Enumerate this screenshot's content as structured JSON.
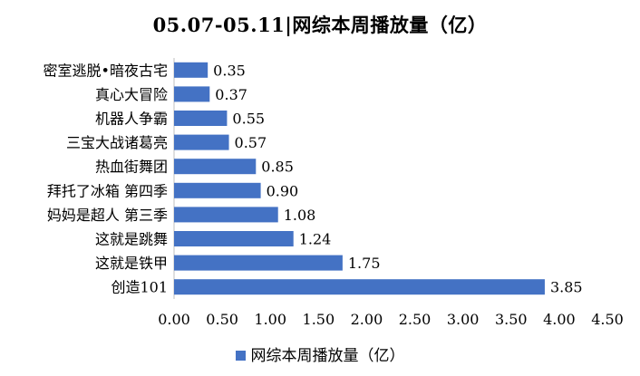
{
  "chart_data": {
    "type": "bar",
    "orientation": "horizontal",
    "title": "05.07-05.11|网综本周播放量（亿）",
    "categories": [
      "创造101",
      "这就是铁甲",
      "这就是跳舞",
      "妈妈是超人 第三季",
      "拜托了冰箱 第四季",
      "热血街舞团",
      "三宝大战诸葛亮",
      "机器人争霸",
      "真心大冒险",
      "密室逃脱•暗夜古宅"
    ],
    "series": [
      {
        "name": "网综本周播放量（亿）",
        "values": [
          3.85,
          1.75,
          1.24,
          1.08,
          0.9,
          0.85,
          0.57,
          0.55,
          0.37,
          0.35
        ],
        "labels": [
          "3.85",
          "1.75",
          "1.24",
          "1.08",
          "0.90",
          "0.85",
          "0.57",
          "0.55",
          "0.37",
          "0.35"
        ]
      }
    ],
    "xlim": [
      0,
      4.5
    ],
    "xticks": [
      "0.00",
      "0.50",
      "1.00",
      "1.50",
      "2.00",
      "2.50",
      "3.00",
      "3.50",
      "4.00",
      "4.50"
    ],
    "grid": false,
    "legend": "bottom",
    "bar_color": "#4472C4"
  }
}
